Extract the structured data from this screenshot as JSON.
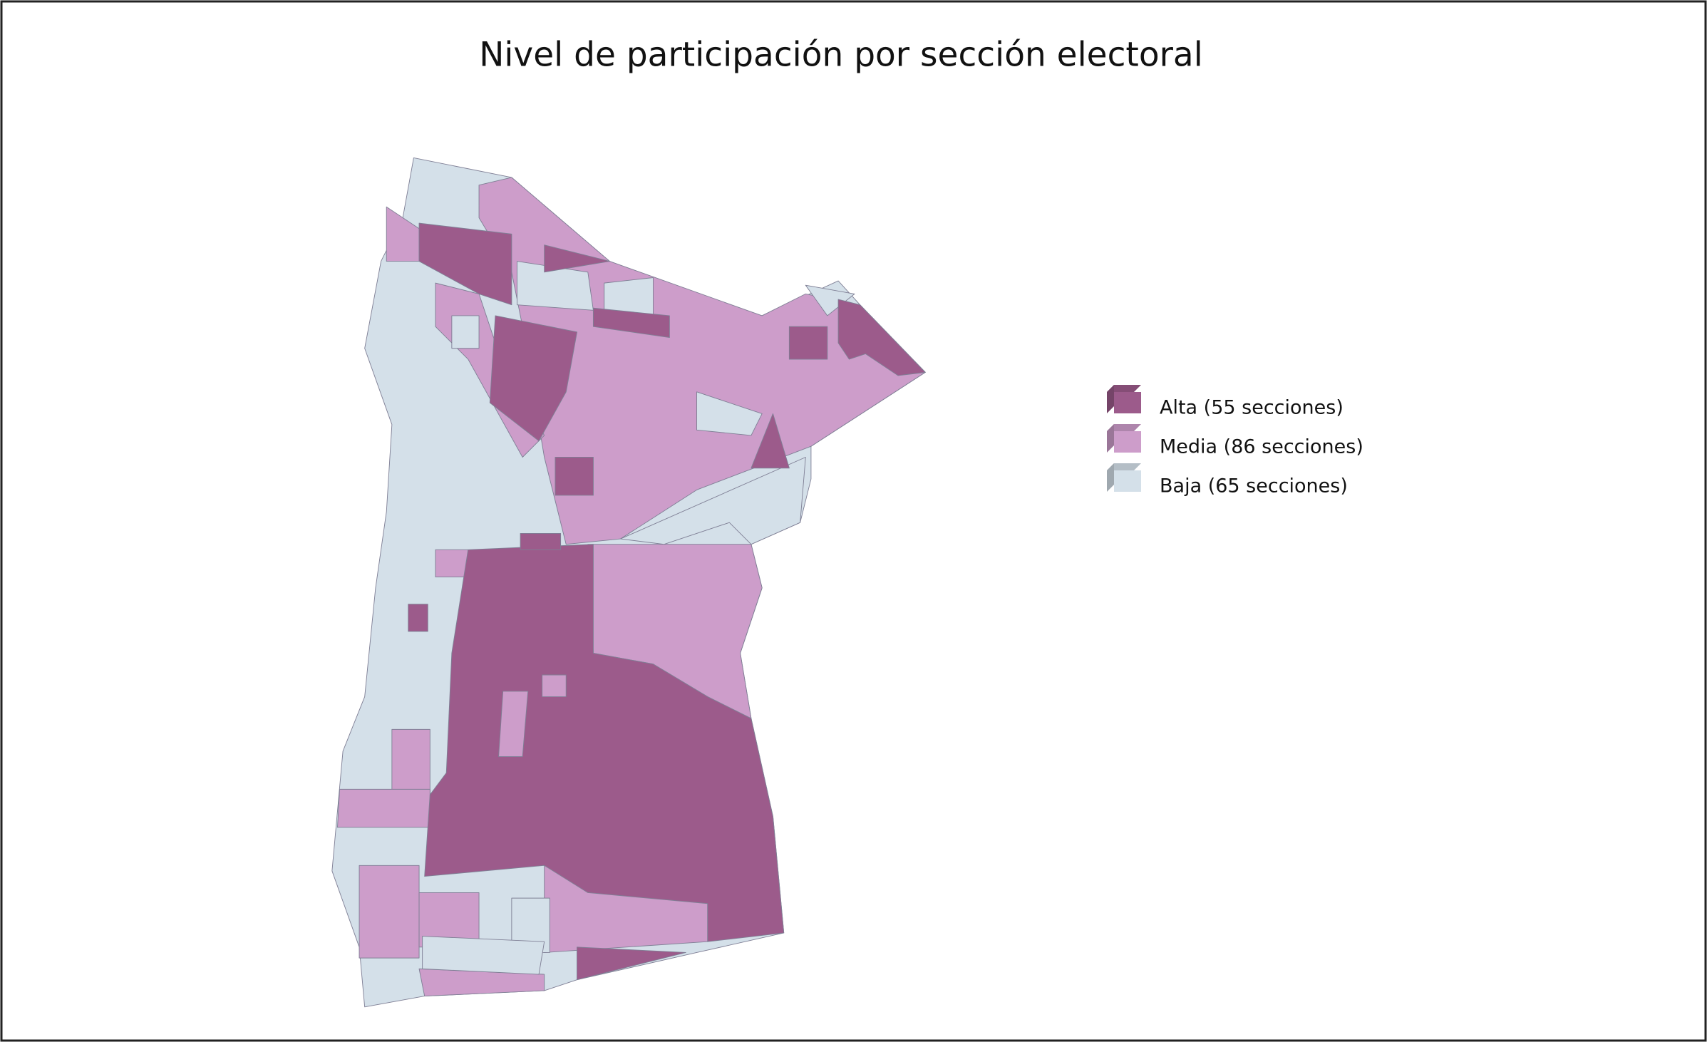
{
  "title": "Nivel de participación por sección electoral",
  "legend": [
    {
      "label": "Alta (55 secciones)",
      "color": "#9c5b8b"
    },
    {
      "label": "Media (86 secciones)",
      "color": "#cd9dca"
    },
    {
      "label": "Baja (65 secciones)",
      "color": "#d4e0e9"
    }
  ]
}
